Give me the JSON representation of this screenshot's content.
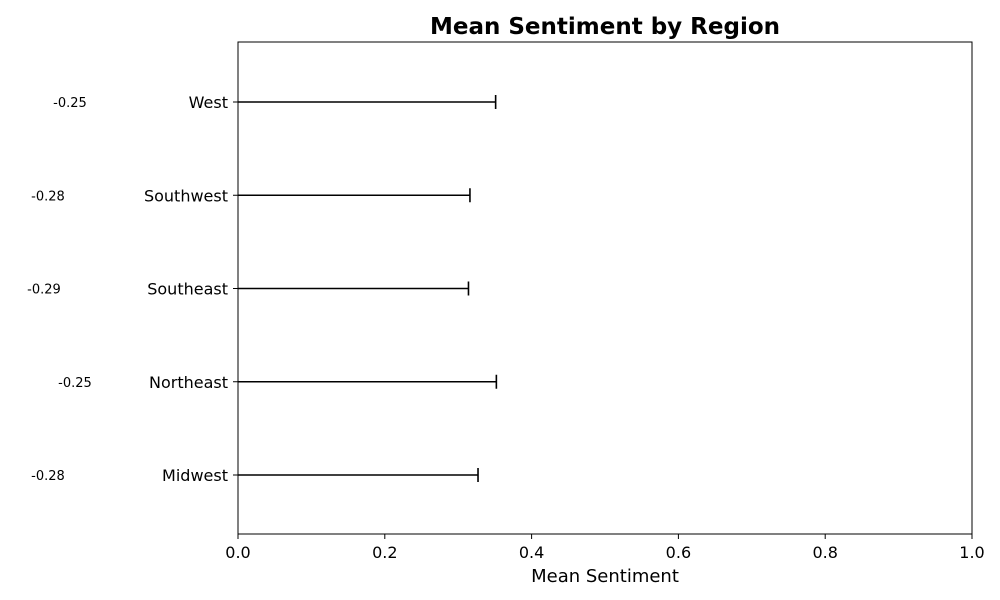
{
  "chart_data": {
    "type": "bar",
    "orientation": "horizontal",
    "title": "Mean Sentiment by Region",
    "xlabel": "Mean Sentiment",
    "ylabel": "",
    "xlim": [
      0,
      1
    ],
    "x_ticks": [
      "0.0",
      "0.2",
      "0.4",
      "0.6",
      "0.8",
      "1.0"
    ],
    "categories": [
      "Midwest",
      "Northeast",
      "Southeast",
      "Southwest",
      "West"
    ],
    "values": [
      -0.28,
      -0.25,
      -0.29,
      -0.28,
      -0.25
    ],
    "value_labels": [
      "-0.28",
      "-0.25",
      "-0.29",
      "-0.28",
      "-0.25"
    ],
    "error_upper": [
      0.327,
      0.352,
      0.314,
      0.316,
      0.351
    ],
    "grid": false,
    "legend": "none",
    "colors": {
      "errorbar": "#000000",
      "axes": "#000000",
      "background": "#ffffff"
    }
  }
}
